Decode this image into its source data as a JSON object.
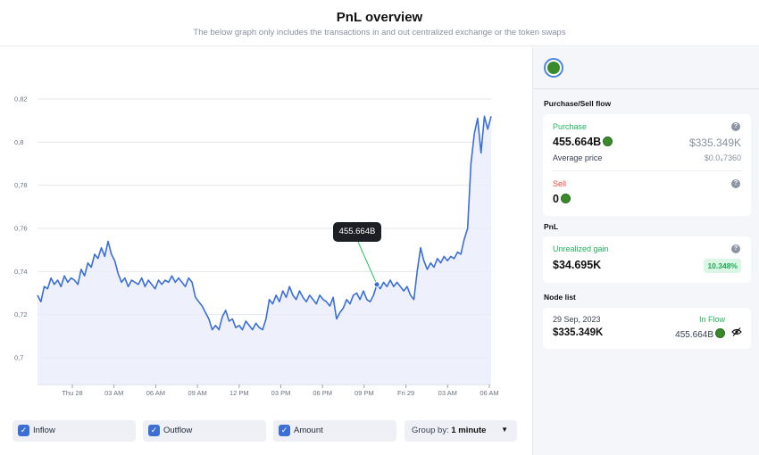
{
  "header": {
    "title": "PnL overview",
    "subtitle": "The below graph only includes the transactions in and out centralized exchange or the token swaps"
  },
  "chart_data": {
    "type": "line",
    "y_ticks": [
      "0,82",
      "0,8",
      "0,78",
      "0,76",
      "0,74",
      "0,72",
      "0,7"
    ],
    "x_ticks": [
      "Thu 28",
      "03 AM",
      "06 AM",
      "09 AM",
      "12 PM",
      "03 PM",
      "06 PM",
      "09 PM",
      "Fri 29",
      "03 AM",
      "06 AM"
    ],
    "ylim": [
      0.7,
      0.82
    ],
    "series": [
      {
        "values": [
          0.729,
          0.726,
          0.733,
          0.732,
          0.737,
          0.734,
          0.736,
          0.733,
          0.738,
          0.735,
          0.737,
          0.736,
          0.734,
          0.741,
          0.738,
          0.744,
          0.742,
          0.748,
          0.746,
          0.751,
          0.747,
          0.754,
          0.748,
          0.745,
          0.739,
          0.735,
          0.737,
          0.733,
          0.736,
          0.735,
          0.734,
          0.737,
          0.733,
          0.736,
          0.734,
          0.732,
          0.736,
          0.734,
          0.736,
          0.735,
          0.738,
          0.735,
          0.737,
          0.735,
          0.733,
          0.737,
          0.735,
          0.728,
          0.726,
          0.724,
          0.721,
          0.718,
          0.713,
          0.715,
          0.713,
          0.719,
          0.722,
          0.717,
          0.718,
          0.714,
          0.715,
          0.713,
          0.717,
          0.715,
          0.713,
          0.716,
          0.714,
          0.713,
          0.718,
          0.727,
          0.725,
          0.729,
          0.726,
          0.731,
          0.728,
          0.733,
          0.729,
          0.727,
          0.731,
          0.728,
          0.726,
          0.729,
          0.727,
          0.725,
          0.729,
          0.727,
          0.726,
          0.724,
          0.728,
          0.718,
          0.721,
          0.723,
          0.727,
          0.725,
          0.729,
          0.73,
          0.727,
          0.731,
          0.727,
          0.726,
          0.729,
          0.734,
          0.732,
          0.735,
          0.733,
          0.736,
          0.733,
          0.735,
          0.733,
          0.731,
          0.733,
          0.729,
          0.727,
          0.74,
          0.751,
          0.745,
          0.741,
          0.744,
          0.742,
          0.746,
          0.744,
          0.747,
          0.745,
          0.747,
          0.746,
          0.749,
          0.748,
          0.755,
          0.76,
          0.79,
          0.804,
          0.811,
          0.795,
          0.812,
          0.806,
          0.812
        ]
      }
    ],
    "tooltip": {
      "label": "455.664B",
      "index": 101
    }
  },
  "controls": {
    "inflow_label": "Inflow",
    "outflow_label": "Outflow",
    "amount_label": "Amount",
    "groupby_label": "Group by:",
    "groupby_value": "1 minute"
  },
  "sidebar": {
    "purchase_sell_title": "Purchase/Sell flow",
    "purchase": {
      "label": "Purchase",
      "amount": "455.664B",
      "usd": "$335.349K",
      "avg_price_label": "Average price",
      "avg_price_value": "$0.0₄7360"
    },
    "sell": {
      "label": "Sell",
      "amount": "0"
    },
    "pnl_title": "PnL",
    "pnl": {
      "label": "Unrealized gain",
      "value": "$34.695K",
      "percent": "10.348%"
    },
    "node_list_title": "Node list",
    "node": {
      "date": "29 Sep, 2023",
      "flow": "In Flow",
      "usd": "$335.349K",
      "amount": "455.664B"
    }
  },
  "colors": {
    "line": "#3b6fd6",
    "tooltip_connector": "#22c55e",
    "positive": "#22b35e",
    "negative": "#ef4444"
  }
}
